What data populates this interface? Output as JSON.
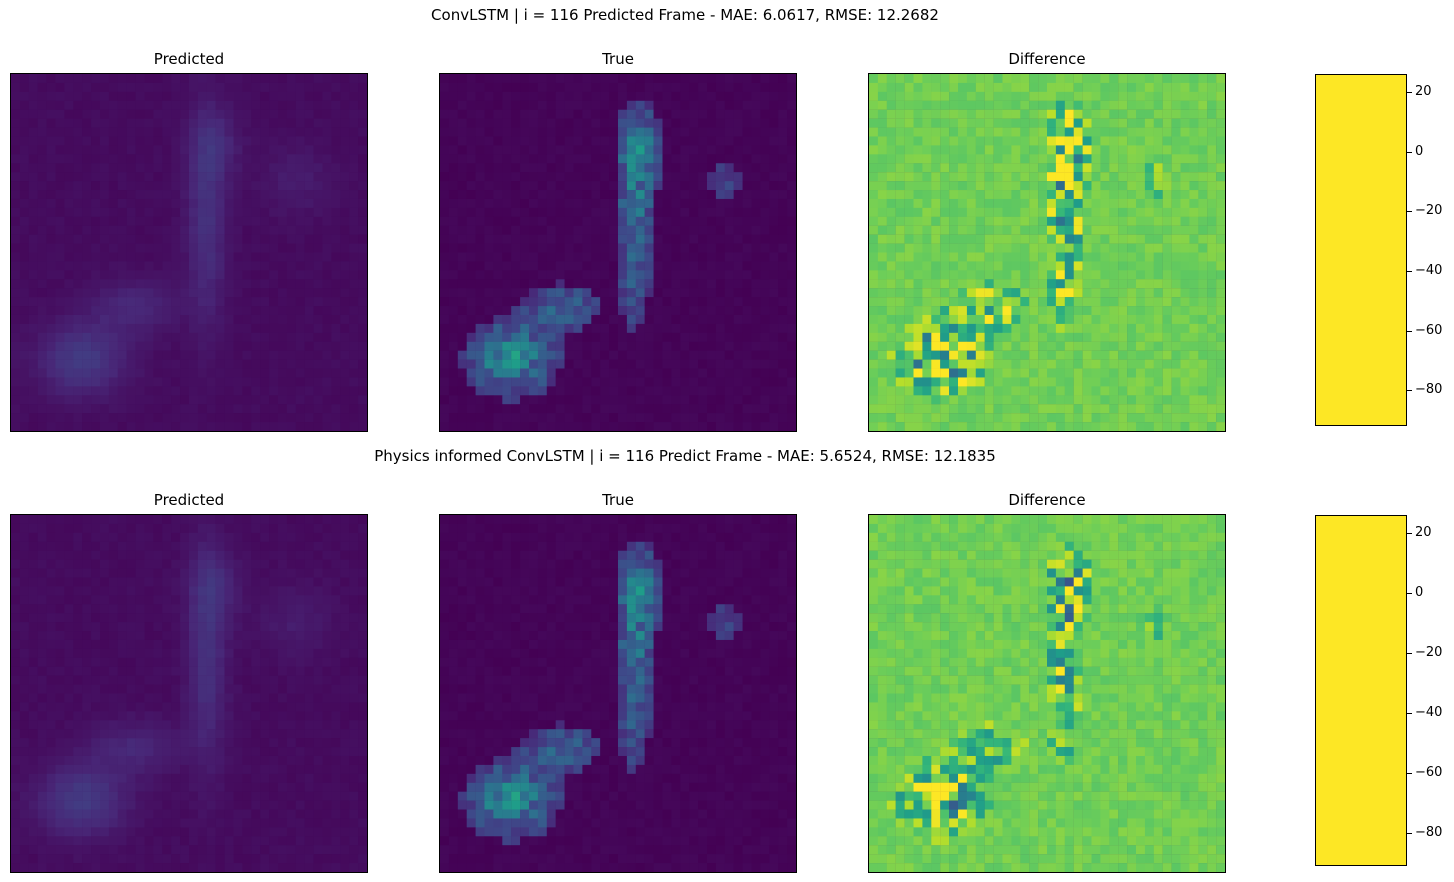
{
  "figure": {
    "rows": [
      {
        "suptitle": "ConvLSTM | i = 116 Predicted Frame - MAE: 6.0617, RMSE: 12.2682",
        "panel_titles": [
          "Predicted",
          "True",
          "Difference"
        ]
      },
      {
        "suptitle": "Physics informed ConvLSTM | i = 116 Predict Frame - MAE: 5.6524, RMSE: 12.1835",
        "panel_titles": [
          "Predicted",
          "True",
          "Difference"
        ]
      }
    ],
    "colormap": "viridis",
    "colormap_stops": [
      "#440154",
      "#482878",
      "#3e4989",
      "#31688e",
      "#26828e",
      "#1f9e89",
      "#35b779",
      "#6ece58",
      "#b5de2b",
      "#fde725"
    ]
  },
  "chart_data": [
    {
      "type": "heatmap",
      "title": "ConvLSTM | i = 116 Predicted Frame - MAE: 6.0617, RMSE: 12.2682",
      "panels": [
        "Predicted",
        "True",
        "Difference"
      ],
      "grid_size": [
        40,
        40
      ],
      "colorbar": {
        "range": [
          -92,
          26
        ],
        "ticks": [
          20,
          0,
          -20,
          -40,
          -60,
          -80
        ],
        "tick_labels": [
          "20",
          "0",
          "−20",
          "−40",
          "−60",
          "−80"
        ]
      },
      "metrics": {
        "MAE": 6.0617,
        "RMSE": 12.2682
      }
    },
    {
      "type": "heatmap",
      "title": "Physics informed ConvLSTM | i = 116 Predict Frame - MAE: 5.6524, RMSE: 12.1835",
      "panels": [
        "Predicted",
        "True",
        "Difference"
      ],
      "grid_size": [
        40,
        40
      ],
      "colorbar": {
        "range": [
          -91,
          26
        ],
        "ticks": [
          20,
          0,
          -20,
          -40,
          -60,
          -80
        ],
        "tick_labels": [
          "20",
          "0",
          "−20",
          "−40",
          "−60",
          "−80"
        ]
      },
      "metrics": {
        "MAE": 5.6524,
        "RMSE": 12.1835
      }
    }
  ]
}
